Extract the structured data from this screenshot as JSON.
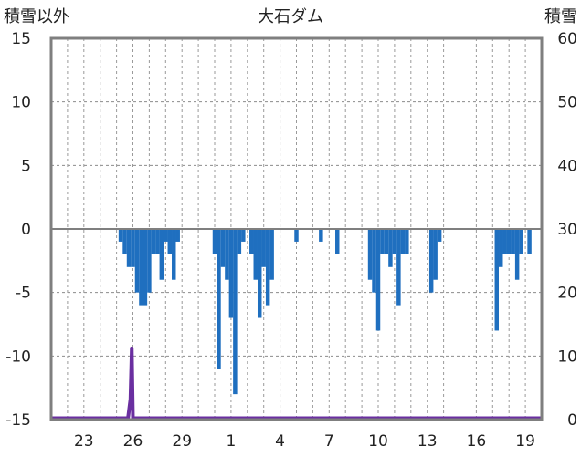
{
  "chart_data": {
    "type": "bar",
    "title": "大石ダム",
    "ylabel_left": "積雪以外",
    "ylabel_right": "積雪",
    "y_left": {
      "min": -15,
      "max": 15,
      "ticks": [
        15,
        10,
        5,
        0,
        -5,
        -10,
        -15
      ]
    },
    "y_right": {
      "min": 0,
      "max": 60,
      "ticks": [
        60,
        50,
        40,
        30,
        20,
        10,
        0
      ]
    },
    "x_day_range": [
      21,
      51
    ],
    "x_tick_labels": [
      {
        "label": "23",
        "day": 23
      },
      {
        "label": "26",
        "day": 26
      },
      {
        "label": "29",
        "day": 29
      },
      {
        "label": "1",
        "day": 32
      },
      {
        "label": "4",
        "day": 35
      },
      {
        "label": "7",
        "day": 38
      },
      {
        "label": "10",
        "day": 41
      },
      {
        "label": "13",
        "day": 44
      },
      {
        "label": "16",
        "day": 47
      },
      {
        "label": "19",
        "day": 50
      }
    ],
    "series": [
      {
        "name": "積雪以外",
        "color": "#1f6fbf",
        "axis": "left",
        "points": [
          [
            25.25,
            -1
          ],
          [
            25.5,
            -2
          ],
          [
            25.75,
            -3
          ],
          [
            26.0,
            -3
          ],
          [
            26.25,
            -5
          ],
          [
            26.5,
            -6
          ],
          [
            26.75,
            -6
          ],
          [
            27.0,
            -5
          ],
          [
            27.25,
            -2
          ],
          [
            27.5,
            -2
          ],
          [
            27.75,
            -4
          ],
          [
            28.0,
            -1
          ],
          [
            28.25,
            -2
          ],
          [
            28.5,
            -4
          ],
          [
            28.75,
            -1
          ],
          [
            31.0,
            -2
          ],
          [
            31.25,
            -11
          ],
          [
            31.5,
            -3
          ],
          [
            31.75,
            -4
          ],
          [
            32.0,
            -7
          ],
          [
            32.25,
            -13
          ],
          [
            32.5,
            -2
          ],
          [
            32.75,
            -1
          ],
          [
            33.25,
            -2
          ],
          [
            33.5,
            -4
          ],
          [
            33.75,
            -7
          ],
          [
            34.0,
            -3
          ],
          [
            34.25,
            -6
          ],
          [
            34.5,
            -4
          ],
          [
            36.0,
            -1
          ],
          [
            37.5,
            -1
          ],
          [
            38.5,
            -2
          ],
          [
            40.5,
            -4
          ],
          [
            40.75,
            -5
          ],
          [
            41.0,
            -8
          ],
          [
            41.25,
            -2
          ],
          [
            41.5,
            -2
          ],
          [
            41.75,
            -3
          ],
          [
            42.0,
            -2
          ],
          [
            42.25,
            -6
          ],
          [
            42.5,
            -2
          ],
          [
            42.75,
            -2
          ],
          [
            44.25,
            -5
          ],
          [
            44.5,
            -4
          ],
          [
            44.75,
            -1
          ],
          [
            48.25,
            -8
          ],
          [
            48.5,
            -3
          ],
          [
            48.75,
            -2
          ],
          [
            49.0,
            -2
          ],
          [
            49.25,
            -2
          ],
          [
            49.5,
            -4
          ],
          [
            49.75,
            -2
          ],
          [
            50.25,
            -2
          ]
        ]
      },
      {
        "name": "積雪",
        "color": "#6a2fa0",
        "axis": "right",
        "points": [
          [
            21.0,
            0
          ],
          [
            25.7,
            0
          ],
          [
            25.85,
            3
          ],
          [
            25.93,
            11
          ],
          [
            26.0,
            0
          ],
          [
            51.0,
            0
          ]
        ]
      }
    ]
  }
}
